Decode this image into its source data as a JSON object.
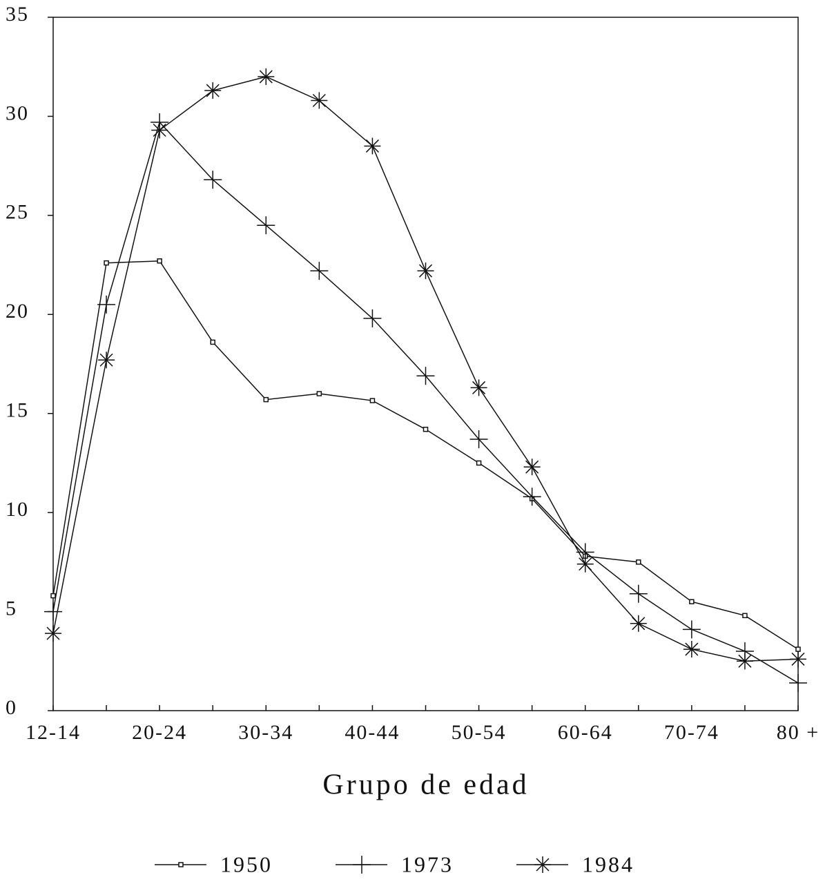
{
  "chart_data": {
    "type": "line",
    "xlabel": "Grupo de edad",
    "categories": [
      "12-14",
      null,
      "20-24",
      null,
      "30-34",
      null,
      "40-44",
      null,
      "50-54",
      null,
      "60-64",
      null,
      "70-74",
      null,
      "80 +"
    ],
    "series": [
      {
        "name": "1950",
        "color": "#111111",
        "marker": "square",
        "values": [
          5.8,
          22.6,
          22.7,
          18.6,
          15.7,
          16.0,
          15.65,
          14.2,
          12.5,
          10.7,
          7.8,
          7.5,
          5.5,
          4.8,
          3.1
        ]
      },
      {
        "name": "1973",
        "color": "#111111",
        "marker": "plus",
        "values": [
          5.0,
          20.5,
          29.7,
          26.8,
          24.5,
          22.2,
          19.8,
          16.9,
          13.7,
          10.8,
          8.0,
          5.9,
          4.1,
          3.0,
          1.4
        ]
      },
      {
        "name": "1984",
        "color": "#111111",
        "marker": "asterisk",
        "values": [
          3.9,
          17.7,
          29.3,
          31.3,
          32.0,
          30.8,
          28.5,
          22.2,
          16.3,
          12.3,
          7.4,
          4.4,
          3.1,
          2.5,
          2.6
        ]
      }
    ],
    "ylim": [
      0,
      35
    ],
    "yticks": [
      0,
      5,
      10,
      15,
      20,
      25,
      30,
      35
    ],
    "grid": false,
    "legend": "bottom"
  }
}
